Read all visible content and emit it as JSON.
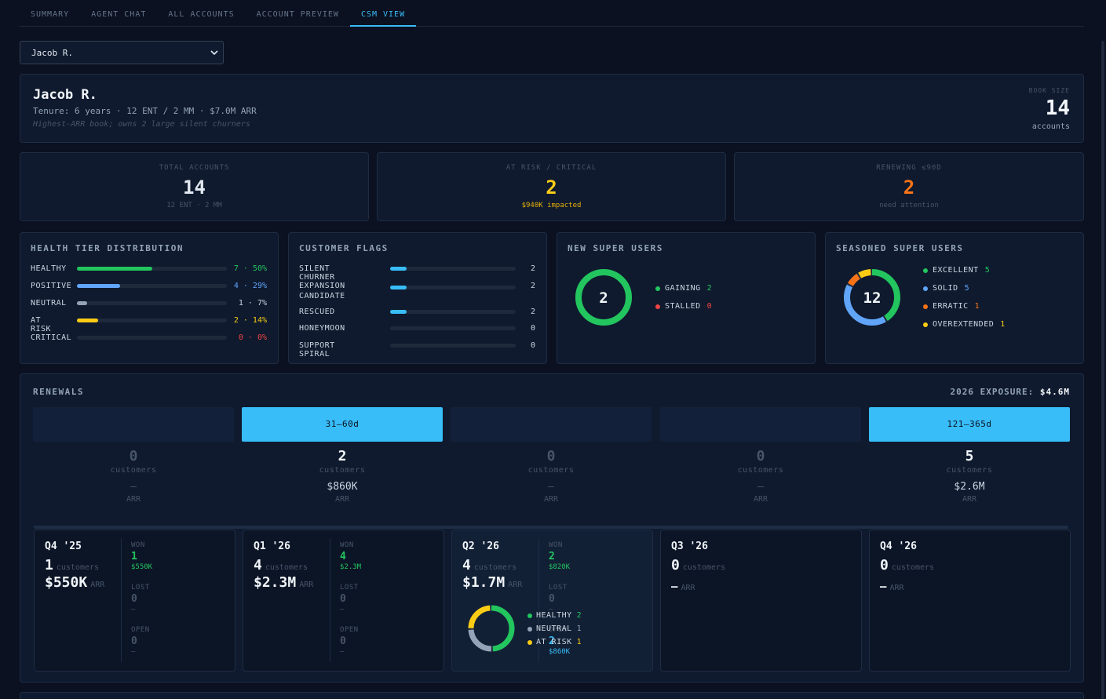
{
  "tabs": [
    {
      "label": "SUMMARY",
      "active": false
    },
    {
      "label": "AGENT CHAT",
      "active": false
    },
    {
      "label": "ALL ACCOUNTS",
      "active": false
    },
    {
      "label": "ACCOUNT PREVIEW",
      "active": false
    },
    {
      "label": "CSM VIEW",
      "active": true
    }
  ],
  "csm_select": {
    "value": "Jacob R."
  },
  "profile": {
    "name": "Jacob R.",
    "tenure": "Tenure: 6 years · 12 ENT / 2 MM · $7.0M ARR",
    "note": "Highest-ARR book; owns 2 large silent churners",
    "book_label": "BOOK SIZE",
    "book_size": "14",
    "book_unit": "accounts"
  },
  "stats": [
    {
      "label": "TOTAL ACCOUNTS",
      "value": "14",
      "sub": "12 ENT · 2 MM",
      "color": "#e2e8f0",
      "sub_color": "#475569"
    },
    {
      "label": "AT RISK / CRITICAL",
      "value": "2",
      "sub": "$940K impacted",
      "color": "#facc15",
      "sub_color": "#eab308"
    },
    {
      "label": "RENEWING ≤90D",
      "value": "2",
      "sub": "need attention",
      "color": "#f97316",
      "sub_color": "#475569"
    }
  ],
  "health": {
    "title": "HEALTH TIER DISTRIBUTION",
    "rows": [
      {
        "label": "HEALTHY",
        "value": "7 · 50%",
        "pct": 0.5,
        "color": "#22c55e"
      },
      {
        "label": "POSITIVE",
        "value": "4 · 29%",
        "pct": 0.29,
        "color": "#60a5fa"
      },
      {
        "label": "NEUTRAL",
        "value": "1 · 7%",
        "pct": 0.07,
        "color": "#94a3b8"
      },
      {
        "label": "AT RISK",
        "value": "2 · 14%",
        "pct": 0.14,
        "color": "#facc15"
      },
      {
        "label": "CRITICAL",
        "value": "0 · 0%",
        "pct": 0,
        "color": "#ef4444"
      }
    ]
  },
  "flags": {
    "title": "CUSTOMER FLAGS",
    "rows": [
      {
        "label": "SILENT CHURNER",
        "value": "2",
        "pct": 0.13
      },
      {
        "label": "EXPANSION CANDIDATE",
        "value": "2",
        "pct": 0.13
      },
      {
        "label": "RESCUED",
        "value": "2",
        "pct": 0.13
      },
      {
        "label": "HONEYMOON",
        "value": "0",
        "pct": 0
      },
      {
        "label": "SUPPORT SPIRAL",
        "value": "0",
        "pct": 0
      }
    ],
    "color": "#38bdf8"
  },
  "new_super": {
    "title": "NEW SUPER USERS",
    "total": "2",
    "items": [
      {
        "label": "GAINING",
        "value": "2",
        "num": 2,
        "color": "#22c55e"
      },
      {
        "label": "STALLED",
        "value": "0",
        "num": 0,
        "color": "#ef4444"
      }
    ]
  },
  "seasoned_super": {
    "title": "SEASONED SUPER USERS",
    "total": "12",
    "items": [
      {
        "label": "EXCELLENT",
        "value": "5",
        "num": 5,
        "color": "#22c55e"
      },
      {
        "label": "SOLID",
        "value": "5",
        "num": 5,
        "color": "#60a5fa"
      },
      {
        "label": "ERRATIC",
        "value": "1",
        "num": 1,
        "color": "#f97316"
      },
      {
        "label": "OVEREXTENDED",
        "value": "1",
        "num": 1,
        "color": "#facc15"
      }
    ]
  },
  "renewals": {
    "title": "RENEWALS",
    "exposure_label": "2026 EXPOSURE:",
    "exposure_value": "$4.6M",
    "customers_unit": "customers",
    "arr_unit": "ARR",
    "buckets": [
      {
        "label": "",
        "active": false,
        "count": "0",
        "arr": "—"
      },
      {
        "label": "31–60d",
        "active": true,
        "count": "2",
        "arr": "$860K"
      },
      {
        "label": "",
        "active": false,
        "count": "0",
        "arr": "—"
      },
      {
        "label": "",
        "active": false,
        "count": "0",
        "arr": "—"
      },
      {
        "label": "121–365d",
        "active": true,
        "count": "5",
        "arr": "$2.6M"
      }
    ],
    "quarters": [
      {
        "title": "Q4 '25",
        "count": "1",
        "arr": "$550K",
        "detail": true,
        "highlight": false,
        "won": "1",
        "won_arr": "$550K",
        "lost": "0",
        "lost_arr": "—",
        "open": "0",
        "open_arr": "—"
      },
      {
        "title": "Q1 '26",
        "count": "4",
        "arr": "$2.3M",
        "detail": true,
        "highlight": false,
        "won": "4",
        "won_arr": "$2.3M",
        "lost": "0",
        "lost_arr": "—",
        "open": "0",
        "open_arr": "—"
      },
      {
        "title": "Q2 '26",
        "count": "4",
        "arr": "$1.7M",
        "detail": true,
        "highlight": true,
        "won": "2",
        "won_arr": "$820K",
        "lost": "0",
        "lost_arr": "—",
        "open": "2",
        "open_arr": "$860K",
        "mix": [
          {
            "label": "HEALTHY",
            "value": "2",
            "num": 2,
            "color": "#22c55e"
          },
          {
            "label": "NEUTRAL",
            "value": "1",
            "num": 1,
            "color": "#94a3b8"
          },
          {
            "label": "AT RISK",
            "value": "1",
            "num": 1,
            "color": "#facc15"
          }
        ]
      },
      {
        "title": "Q3 '26",
        "count": "0",
        "arr": "—",
        "detail": false,
        "highlight": false
      },
      {
        "title": "Q4 '26",
        "count": "0",
        "arr": "—",
        "detail": false,
        "highlight": false
      }
    ],
    "labels": {
      "won": "WON",
      "lost": "LOST",
      "open": "OPEN"
    }
  }
}
